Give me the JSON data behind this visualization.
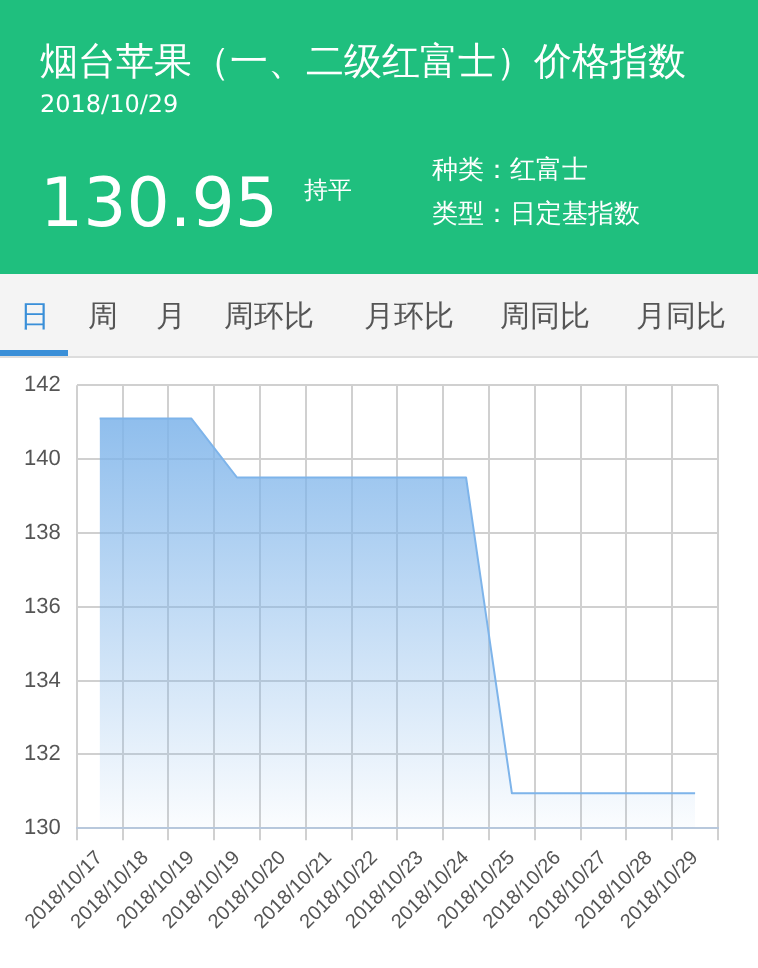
{
  "chart_data": {
    "type": "area",
    "title": "烟台苹果（一、二级红富士）价格指数",
    "subtitle": "2018/10/29",
    "annotations": [
      "130.95",
      "持平",
      "种类：红富士",
      "类型：日定基指数",
      "日",
      "周",
      "月",
      "周环比",
      "月环比",
      "周同比",
      "月同比"
    ],
    "categories": [
      "2018/10/17",
      "2018/10/18",
      "2018/10/19",
      "2018/10/19",
      "2018/10/20",
      "2018/10/21",
      "2018/10/22",
      "2018/10/23",
      "2018/10/24",
      "2018/10/25",
      "2018/10/26",
      "2018/10/27",
      "2018/10/28",
      "2018/10/29"
    ],
    "series": [
      {
        "color": "#7eb4ea",
        "values": [
          141.1,
          141.1,
          141.1,
          139.5,
          139.5,
          139.5,
          139.5,
          139.5,
          139.5,
          130.95,
          130.95,
          130.95,
          130.95,
          130.95
        ]
      }
    ],
    "ylim": [
      130,
      142
    ],
    "yticks": [
      130,
      132,
      134,
      136,
      138,
      140,
      142
    ],
    "grid": true,
    "legend": false,
    "marker": "none"
  }
}
